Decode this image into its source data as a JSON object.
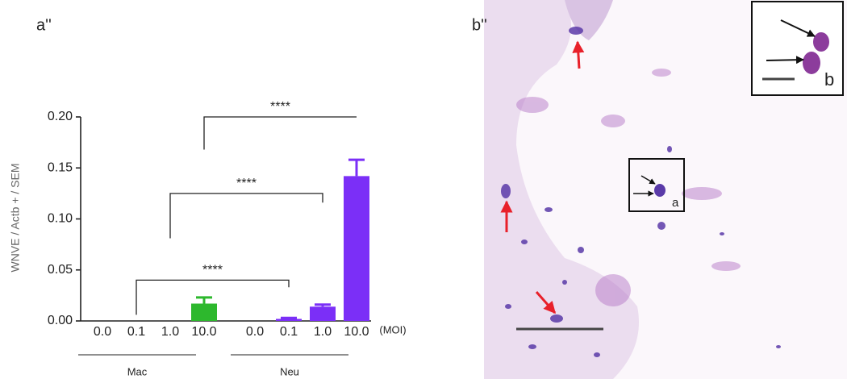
{
  "chart_data": {
    "type": "bar",
    "panel_label": "a''",
    "ylabel": "WNVE / Actb + / SEM",
    "categories": [
      "0.0",
      "0.1",
      "1.0",
      "10.0",
      "0.0",
      "0.1",
      "1.0",
      "10.0"
    ],
    "x_unit": "(MOI)",
    "groups": [
      {
        "name": "Mac",
        "from": 0,
        "to": 3
      },
      {
        "name": "Neu",
        "from": 4,
        "to": 7
      }
    ],
    "values": [
      0,
      0,
      0,
      0.017,
      0,
      0.002,
      0.014,
      0.142
    ],
    "errors": [
      0,
      0,
      0,
      0.006,
      0,
      0.001,
      0.002,
      0.016
    ],
    "colors": [
      "#2db82d",
      "#2db82d",
      "#2db82d",
      "#2db82d",
      "#7b2ff7",
      "#7b2ff7",
      "#7b2ff7",
      "#7b2ff7"
    ],
    "ylim": [
      0,
      0.2
    ],
    "yticks": [
      {
        "value": 0,
        "label": "0.00"
      },
      {
        "value": 0.05,
        "label": "0.05"
      },
      {
        "value": 0.1,
        "label": "0.10"
      },
      {
        "value": 0.15,
        "label": "0.15"
      },
      {
        "value": 0.2,
        "label": "0.20"
      }
    ],
    "annotations": [
      {
        "text": "****",
        "from": 1,
        "to": 5,
        "y": 0.04,
        "left_end": 0.006,
        "right_end": 0.033
      },
      {
        "text": "****",
        "from": 2,
        "to": 6,
        "y": 0.125,
        "left_end": 0.081,
        "right_end": 0.116
      },
      {
        "text": "****",
        "from": 3,
        "to": 7,
        "y": 0.2,
        "left_end": 0.168,
        "right_end": 0.2
      }
    ]
  },
  "image": {
    "panel_label": "b''",
    "inset_labels": [
      "a",
      "b"
    ]
  }
}
